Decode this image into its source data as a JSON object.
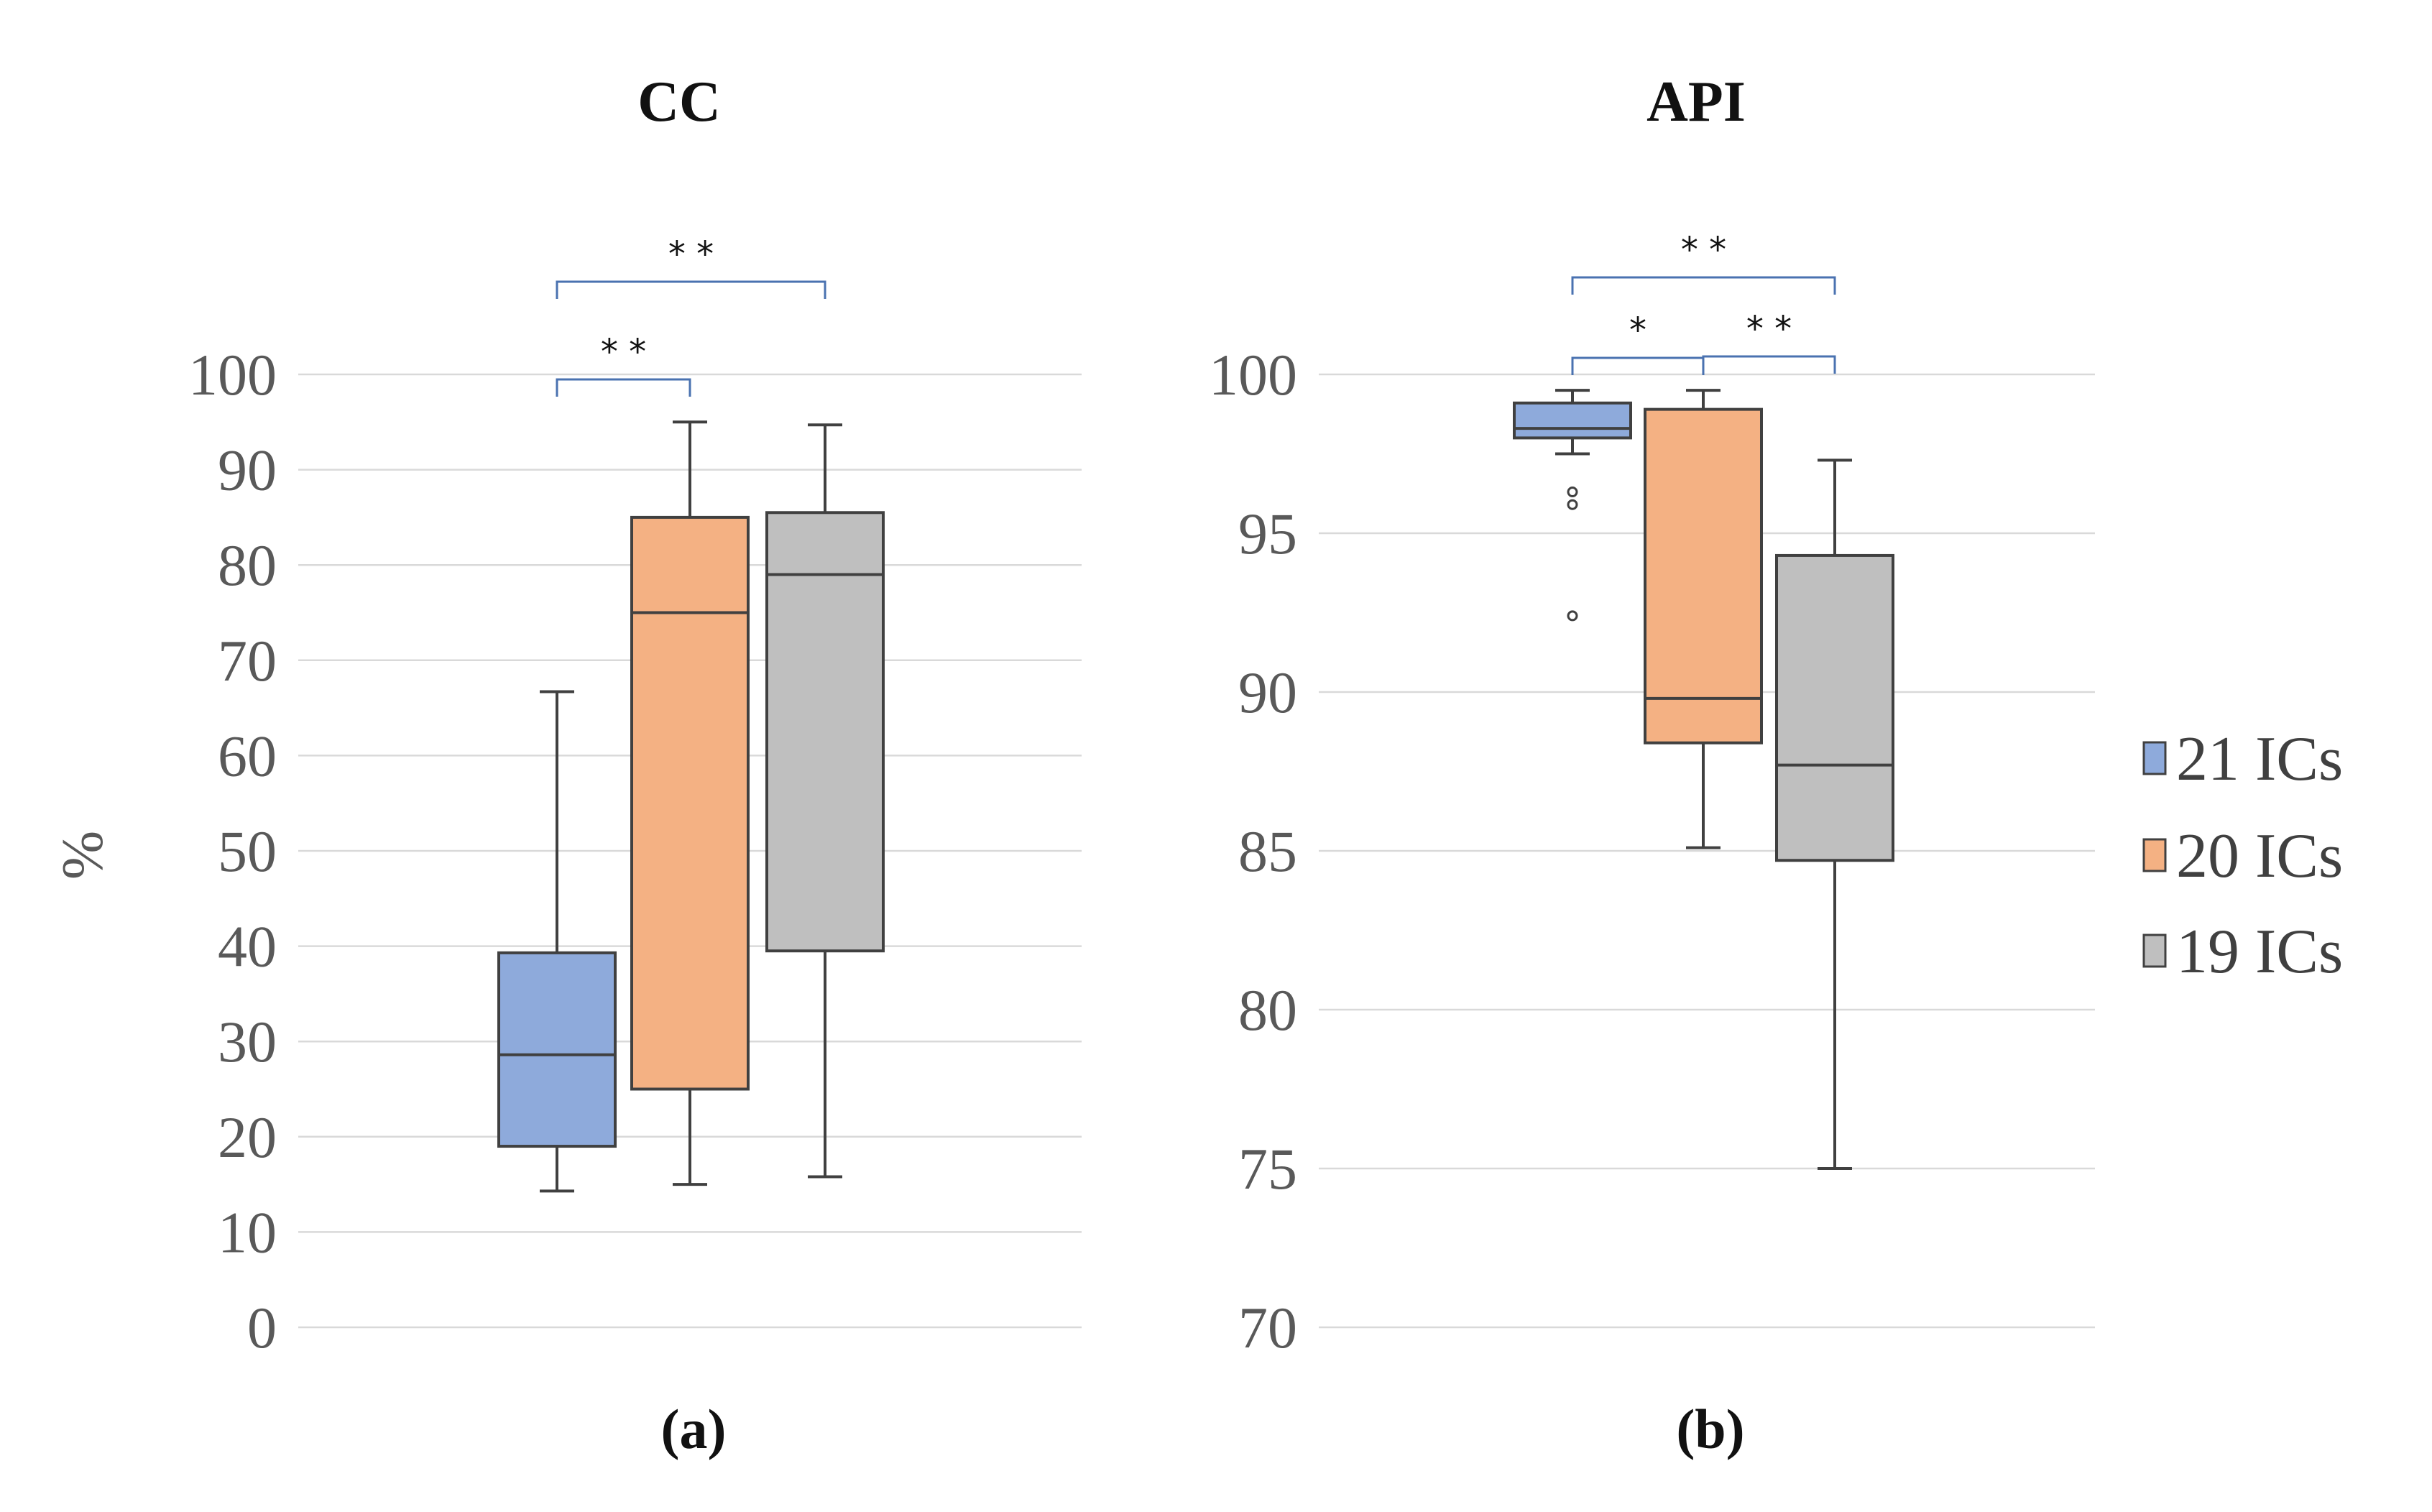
{
  "colors": {
    "series": [
      "#8eaadb",
      "#f4b183",
      "#bfbfbf"
    ],
    "grid": "#d9d9d9",
    "bracket": "#4a72b0"
  },
  "legend": {
    "items": [
      {
        "label": "21 ICs",
        "color": "#8eaadb"
      },
      {
        "label": "20 ICs",
        "color": "#f4b183"
      },
      {
        "label": "19 ICs",
        "color": "#bfbfbf"
      }
    ]
  },
  "chart_data": [
    {
      "type": "box",
      "title": "CC",
      "sublabel": "(a)",
      "ylabel": "%",
      "ylim": [
        0,
        100
      ],
      "yticks": [
        0,
        10,
        20,
        30,
        40,
        50,
        60,
        70,
        80,
        90,
        100
      ],
      "series": [
        {
          "name": "21 ICs",
          "min": 14.3,
          "q1": 19,
          "median": 28.6,
          "q3": 39.3,
          "max": 66.7,
          "outliers": []
        },
        {
          "name": "20 ICs",
          "min": 15,
          "q1": 25,
          "median": 75,
          "q3": 85,
          "max": 95,
          "outliers": []
        },
        {
          "name": "19 ICs",
          "min": 15.8,
          "q1": 39.5,
          "median": 79,
          "q3": 85.5,
          "max": 94.7,
          "outliers": []
        }
      ],
      "significance": [
        {
          "from": 0,
          "to": 1,
          "label": "* *"
        },
        {
          "from": 0,
          "to": 2,
          "label": "* *"
        }
      ]
    },
    {
      "type": "box",
      "title": "API",
      "sublabel": "(b)",
      "ylabel": "",
      "ylim": [
        70,
        100
      ],
      "yticks": [
        70,
        75,
        80,
        85,
        90,
        95,
        100
      ],
      "series": [
        {
          "name": "21 ICs",
          "min": 97.5,
          "q1": 98,
          "median": 98.3,
          "q3": 99.1,
          "max": 99.5,
          "outliers": [
            96.3,
            95.9,
            92.4
          ]
        },
        {
          "name": "20 ICs",
          "min": 85.1,
          "q1": 88.4,
          "median": 89.8,
          "q3": 98.9,
          "max": 99.5,
          "outliers": []
        },
        {
          "name": "19 ICs",
          "min": 75,
          "q1": 84.7,
          "median": 87.7,
          "q3": 94.3,
          "max": 97.3,
          "outliers": []
        }
      ],
      "significance": [
        {
          "from": 0,
          "to": 1,
          "label": "*"
        },
        {
          "from": 1,
          "to": 2,
          "label": "* *"
        },
        {
          "from": 0,
          "to": 2,
          "label": "* *"
        }
      ]
    }
  ]
}
